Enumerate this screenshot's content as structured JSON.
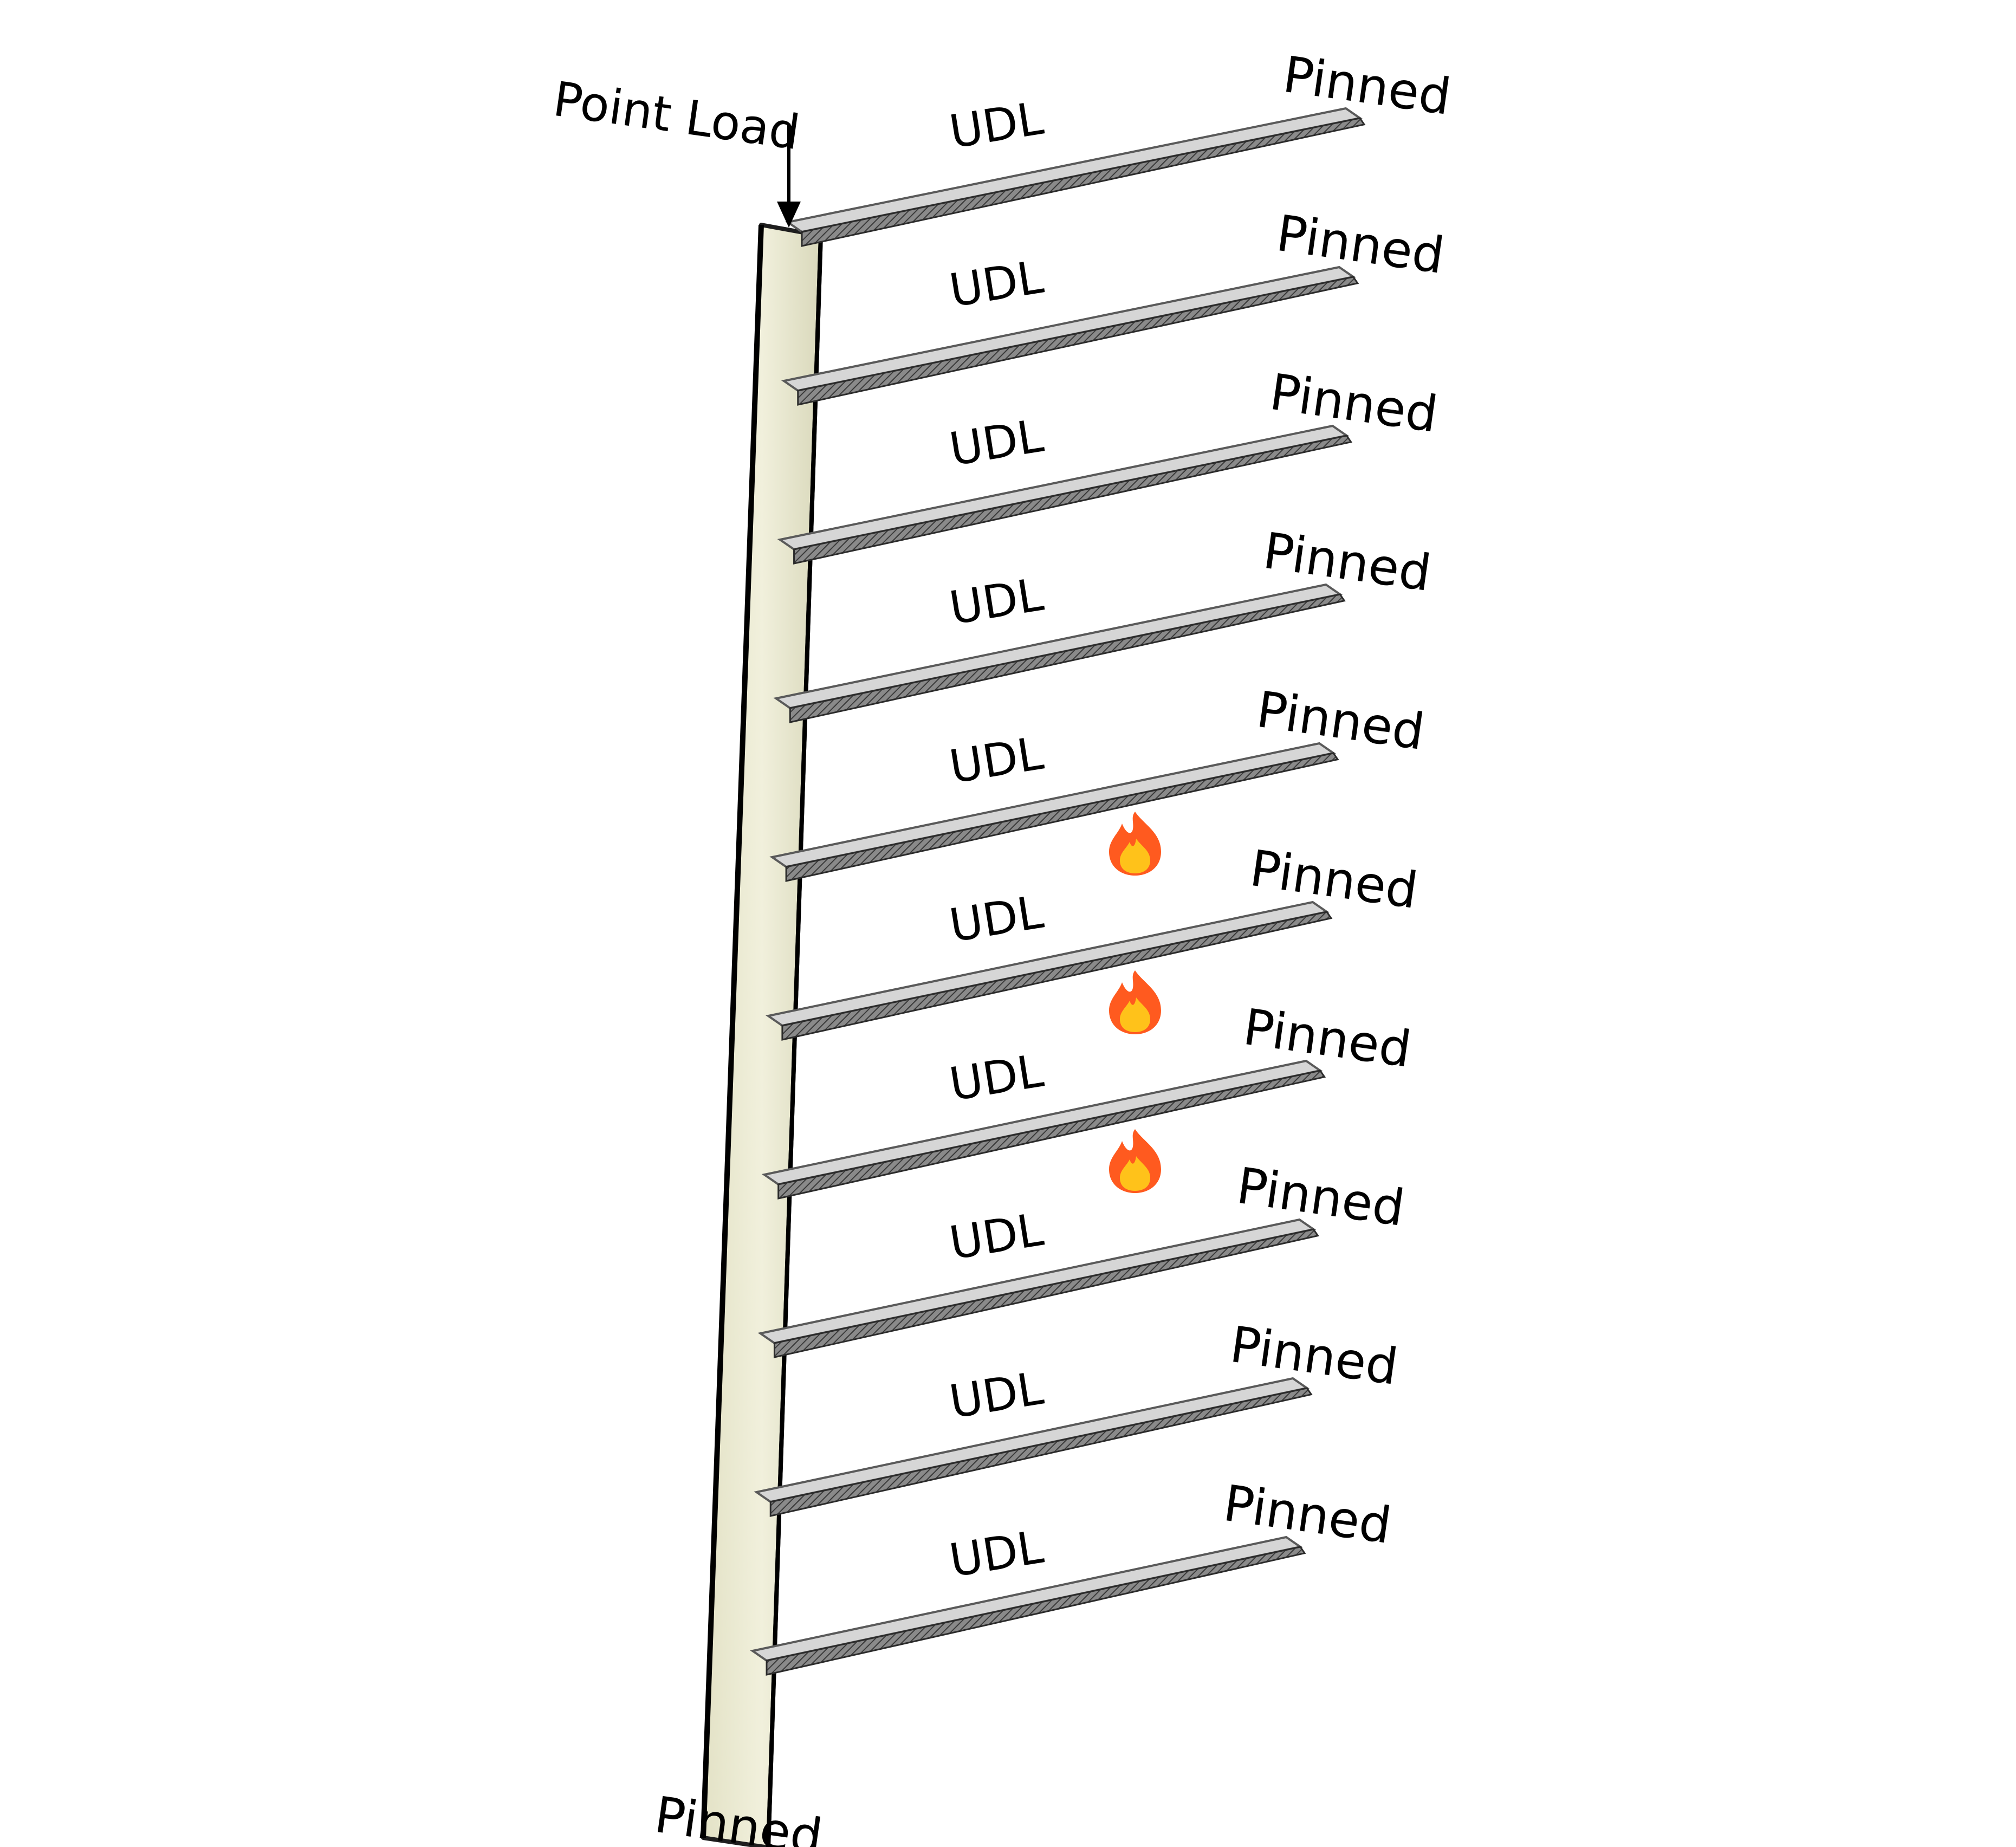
{
  "diagram": {
    "point_load_label": "Point Load",
    "column_base_support": "Pinned",
    "beams": [
      {
        "load_label": "UDL",
        "end_support": "Pinned",
        "fire": false
      },
      {
        "load_label": "UDL",
        "end_support": "Pinned",
        "fire": false
      },
      {
        "load_label": "UDL",
        "end_support": "Pinned",
        "fire": false
      },
      {
        "load_label": "UDL",
        "end_support": "Pinned",
        "fire": false
      },
      {
        "load_label": "UDL",
        "end_support": "Pinned",
        "fire": true
      },
      {
        "load_label": "UDL",
        "end_support": "Pinned",
        "fire": true
      },
      {
        "load_label": "UDL",
        "end_support": "Pinned",
        "fire": true
      },
      {
        "load_label": "UDL",
        "end_support": "Pinned",
        "fire": false
      },
      {
        "load_label": "UDL",
        "end_support": "Pinned",
        "fire": false
      },
      {
        "load_label": "UDL",
        "end_support": "Pinned",
        "fire": false
      }
    ],
    "icons": {
      "fire": "fire-icon",
      "load": "down-arrow-icon"
    },
    "colors": {
      "column_fill": "#efeed8",
      "beam_top": "#d6d6d6",
      "beam_front": "#7e7e7e",
      "fire_outer": "#ff5a1f",
      "fire_inner": "#ffc21a"
    }
  }
}
